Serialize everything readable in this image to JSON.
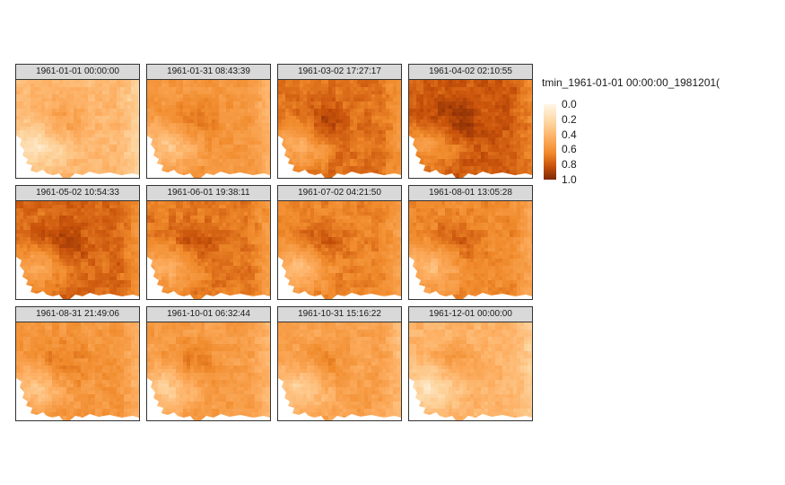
{
  "chart_data": {
    "type": "heatmap",
    "variable": "tmin",
    "legend": {
      "title": "tmin_1961-01-01 00:00:00_1981201(",
      "ticks": [
        "0.0",
        "0.2",
        "0.4",
        "0.6",
        "0.8",
        "1.0"
      ],
      "tick_values": [
        0.0,
        0.2,
        0.4,
        0.6,
        0.8,
        1.0
      ],
      "range": [
        0,
        1
      ],
      "placement": "right"
    },
    "panels": [
      {
        "label": "1961-01-01 00:00:00",
        "mean_value": 0.4
      },
      {
        "label": "1961-01-31 08:43:39",
        "mean_value": 0.58
      },
      {
        "label": "1961-03-02 17:27:17",
        "mean_value": 0.72
      },
      {
        "label": "1961-04-02 02:10:55",
        "mean_value": 0.8
      },
      {
        "label": "1961-05-02 10:54:33",
        "mean_value": 0.75
      },
      {
        "label": "1961-06-01 19:38:11",
        "mean_value": 0.7
      },
      {
        "label": "1961-07-02 04:21:50",
        "mean_value": 0.66
      },
      {
        "label": "1961-08-01 13:05:28",
        "mean_value": 0.64
      },
      {
        "label": "1961-08-31 21:49:06",
        "mean_value": 0.58
      },
      {
        "label": "1961-10-01 06:32:44",
        "mean_value": 0.55
      },
      {
        "label": "1961-10-31 15:16:22",
        "mean_value": 0.52
      },
      {
        "label": "1961-12-01 00:00:00",
        "mean_value": 0.42
      }
    ],
    "colors": {
      "low": "#fff7e6",
      "mid_low": "#fdc884",
      "mid": "#f58b2c",
      "mid_high": "#d05b0a",
      "high": "#7f2704"
    }
  }
}
